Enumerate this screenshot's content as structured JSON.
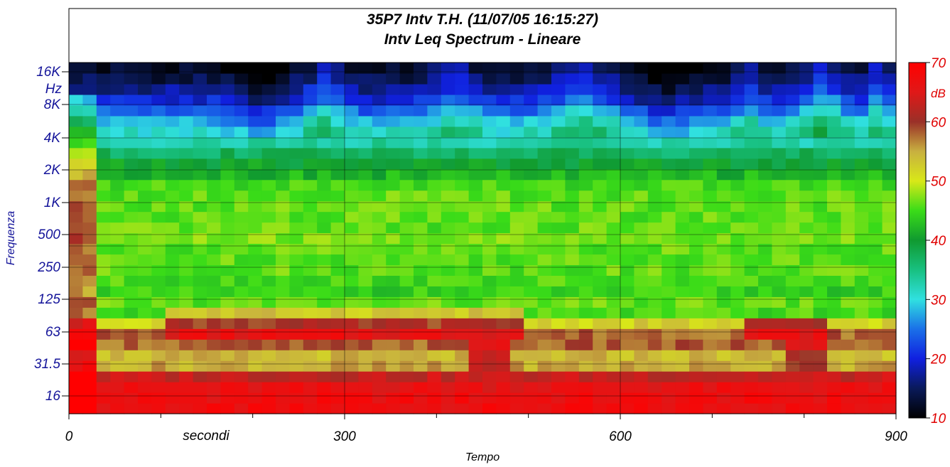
{
  "chart_data": {
    "type": "heatmap",
    "title": "35P7 Intv T.H. (11/07/05 16:15:27)",
    "subtitle": "Intv Leq Spectrum - Lineare",
    "xlabel": "Tempo",
    "x_unit_label": "secondi",
    "ylabel": "Frequenza",
    "y_unit_label": "Hz",
    "x_range": [
      0,
      900
    ],
    "x_major_ticks": [
      0,
      300,
      600,
      900
    ],
    "x_minor_ticks": [
      100,
      200,
      400,
      500,
      700,
      800
    ],
    "y_scale": "octave-log",
    "y_ticks": [
      "16K",
      "8K",
      "4K",
      "2K",
      "1K",
      "500",
      "250",
      "125",
      "63",
      "31.5",
      "16"
    ],
    "colorbar": {
      "label": "dB",
      "range": [
        10,
        70
      ],
      "ticks": [
        10,
        20,
        30,
        40,
        50,
        60,
        70
      ],
      "colors": [
        {
          "value": 10,
          "color": "#000000"
        },
        {
          "value": 15,
          "color": "#0a1a5a"
        },
        {
          "value": 20,
          "color": "#1020e0"
        },
        {
          "value": 25,
          "color": "#1a70e8"
        },
        {
          "value": 30,
          "color": "#30e0e0"
        },
        {
          "value": 35,
          "color": "#18c080"
        },
        {
          "value": 40,
          "color": "#109a30"
        },
        {
          "value": 45,
          "color": "#3adc18"
        },
        {
          "value": 50,
          "color": "#d8e818"
        },
        {
          "value": 55,
          "color": "#c8b040"
        },
        {
          "value": 60,
          "color": "#9a3028"
        },
        {
          "value": 65,
          "color": "#e01818"
        },
        {
          "value": 70,
          "color": "#ff0000"
        }
      ]
    },
    "time_step_s": 15,
    "bands_hz": [
      "12.5",
      "16",
      "20",
      "25",
      "31.5",
      "40",
      "50",
      "63",
      "80",
      "100",
      "125",
      "160",
      "200",
      "250",
      "315",
      "400",
      "500",
      "630",
      "800",
      "1K",
      "1.25K",
      "1.6K",
      "2K",
      "2.5K",
      "3.15K",
      "4K",
      "5K",
      "6.3K",
      "8K",
      "10K",
      "12.5K",
      "16K",
      "20K"
    ],
    "band_profile_db": [
      67,
      67,
      66,
      63,
      55,
      54,
      58,
      66,
      60,
      53,
      46,
      44,
      45,
      46,
      46,
      46,
      47,
      46,
      46,
      46,
      46,
      45,
      42,
      40,
      37,
      33,
      31,
      28,
      24,
      20,
      17,
      14,
      12
    ],
    "grid": true
  }
}
